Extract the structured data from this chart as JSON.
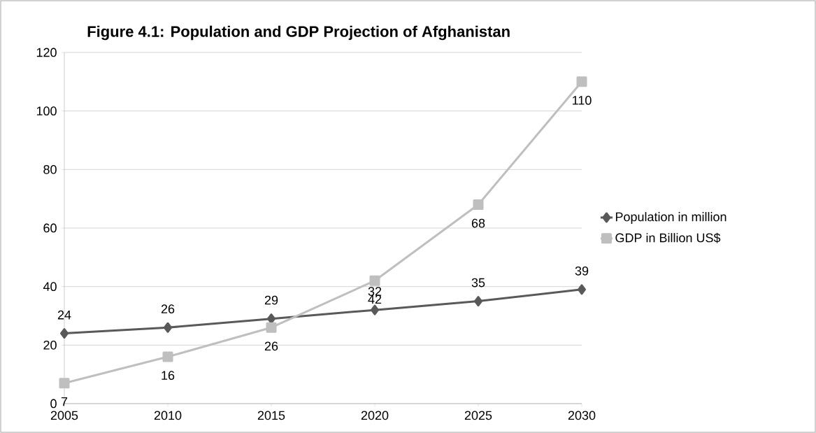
{
  "chart_data": {
    "type": "line",
    "title": "Figure 4.1: Population and GDP Projection of Afghanistan",
    "categories": [
      "2005",
      "2010",
      "2015",
      "2020",
      "2025",
      "2030"
    ],
    "series": [
      {
        "name": "Population in million",
        "color": "#595959",
        "marker": "diamond",
        "values": [
          24,
          26,
          29,
          32,
          35,
          39
        ]
      },
      {
        "name": "GDP in Billion US$",
        "color": "#bfbfbf",
        "marker": "square",
        "values": [
          7,
          16,
          26,
          42,
          68,
          110
        ]
      }
    ],
    "ylim": [
      0,
      120
    ],
    "yticks": [
      0,
      20,
      40,
      60,
      80,
      100,
      120
    ],
    "grid": "y",
    "legend": "right",
    "data_labels": true
  }
}
